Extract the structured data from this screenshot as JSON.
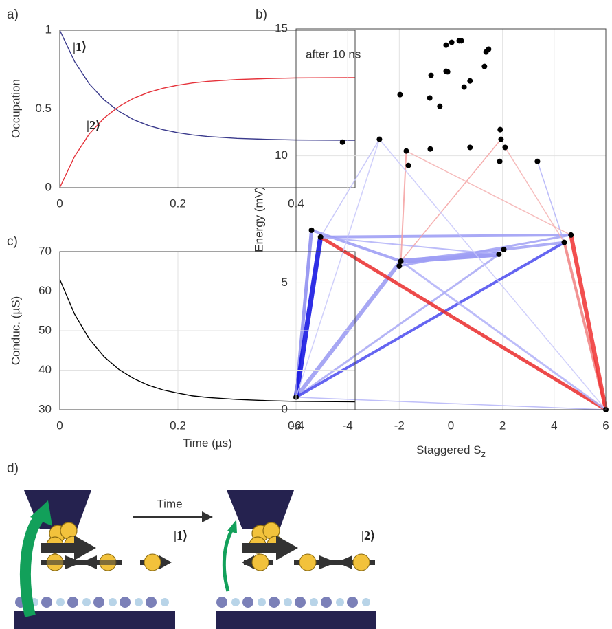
{
  "chart_data": [
    {
      "type": "line",
      "panel_label": "a)",
      "ylabel": "Occupation",
      "x": [
        0,
        0.025,
        0.05,
        0.075,
        0.1,
        0.125,
        0.15,
        0.175,
        0.2,
        0.225,
        0.25,
        0.3,
        0.35,
        0.4,
        0.5
      ],
      "series": [
        {
          "name": "|1⟩",
          "color": "#3a3a8c",
          "values": [
            1.0,
            0.802,
            0.659,
            0.558,
            0.485,
            0.432,
            0.395,
            0.368,
            0.349,
            0.335,
            0.325,
            0.313,
            0.307,
            0.303,
            0.301
          ]
        },
        {
          "name": "|2⟩",
          "color": "#e5323a",
          "values": [
            0.0,
            0.198,
            0.341,
            0.442,
            0.515,
            0.568,
            0.605,
            0.632,
            0.651,
            0.665,
            0.675,
            0.687,
            0.693,
            0.697,
            0.699
          ]
        }
      ],
      "xlim": [
        0,
        0.5
      ],
      "xticks": [
        0,
        0.2,
        0.4
      ],
      "ylim": [
        0,
        1
      ],
      "yticks": [
        0,
        0.5,
        1
      ],
      "grid": true
    },
    {
      "type": "scatter",
      "panel_label": "b)",
      "annotation": "after 10 ns",
      "xlabel": "Staggered S",
      "xlabel_sub": "z",
      "ylabel": "Energy (mV)",
      "color": "#000000",
      "x": [
        -6,
        6,
        -5.4,
        -5.05,
        -1.94,
        -2.0,
        1.86,
        2.05,
        4.39,
        4.65,
        -4.2,
        -2.77,
        -1.73,
        -1.65,
        -0.8,
        0.74,
        1.91,
        1.94,
        2.1,
        1.89,
        3.35,
        -1.97,
        -0.82,
        -0.43,
        -0.77,
        -0.19,
        -0.13,
        -0.19,
        0.03,
        0.32,
        0.4,
        0.51,
        0.74,
        1.3,
        1.36,
        1.46
      ],
      "y": [
        0.49,
        0,
        7.07,
        6.8,
        5.85,
        5.66,
        6.12,
        6.31,
        6.59,
        6.88,
        10.54,
        10.65,
        10.19,
        9.62,
        10.27,
        10.33,
        11.03,
        10.65,
        10.33,
        9.78,
        9.78,
        12.41,
        12.28,
        11.95,
        13.17,
        13.33,
        13.31,
        14.36,
        14.47,
        14.53,
        14.53,
        12.71,
        12.95,
        13.52,
        14.09,
        14.2
      ],
      "transitions": [
        {
          "x": [
            -6,
            6
          ],
          "y": [
            0.49,
            0
          ],
          "color": "#b4b4f8",
          "width": 1.5
        },
        {
          "x": [
            -6,
            1.86
          ],
          "y": [
            0.49,
            6.12
          ],
          "color": "#a8a8f5",
          "width": 3
        },
        {
          "x": [
            -6,
            -1.94
          ],
          "y": [
            0.49,
            5.85
          ],
          "color": "#9898f2",
          "width": 6
        },
        {
          "x": [
            -6,
            -5.4
          ],
          "y": [
            0.49,
            7.07
          ],
          "color": "#8a8af0",
          "width": 5
        },
        {
          "x": [
            -6,
            4.39
          ],
          "y": [
            0.49,
            6.59
          ],
          "color": "#4a4aee",
          "width": 4
        },
        {
          "x": [
            -6,
            -5.05
          ],
          "y": [
            0.49,
            6.8
          ],
          "color": "#0a0ae0",
          "width": 7
        },
        {
          "x": [
            -5.05,
            6
          ],
          "y": [
            6.8,
            0
          ],
          "color": "#ea2a2a",
          "width": 5
        },
        {
          "x": [
            4.39,
            6
          ],
          "y": [
            6.59,
            0
          ],
          "color": "#f08080",
          "width": 4
        },
        {
          "x": [
            4.65,
            6
          ],
          "y": [
            6.88,
            0
          ],
          "color": "#f03030",
          "width": 6
        },
        {
          "x": [
            -5.05,
            4.65
          ],
          "y": [
            6.8,
            6.88
          ],
          "color": "#9a9af5",
          "width": 4
        },
        {
          "x": [
            -1.94,
            1.86
          ],
          "y": [
            5.85,
            6.12
          ],
          "color": "#8c8cf2",
          "width": 7
        },
        {
          "x": [
            -1.94,
            4.39
          ],
          "y": [
            5.85,
            6.59
          ],
          "color": "#a0a0f5",
          "width": 4
        },
        {
          "x": [
            -5.4,
            -1.94
          ],
          "y": [
            7.07,
            5.85
          ],
          "color": "#9a9af5",
          "width": 4
        },
        {
          "x": [
            -1.94,
            6
          ],
          "y": [
            5.85,
            0
          ],
          "color": "#b0b0f8",
          "width": 3
        },
        {
          "x": [
            -5.05,
            1.86
          ],
          "y": [
            6.8,
            6.12
          ],
          "color": "#b0b0f8",
          "width": 2
        },
        {
          "x": [
            4.65,
            -2.0
          ],
          "y": [
            6.88,
            5.66
          ],
          "color": "#a0a0f5",
          "width": 3
        },
        {
          "x": [
            -1.94,
            -1.73
          ],
          "y": [
            5.85,
            10.19
          ],
          "color": "#f4a0a0",
          "width": 2
        },
        {
          "x": [
            -5.05,
            -2.77
          ],
          "y": [
            6.8,
            10.65
          ],
          "color": "#c0c0f8",
          "width": 1.5
        },
        {
          "x": [
            -1.94,
            1.94
          ],
          "y": [
            5.85,
            10.65
          ],
          "color": "#f4a0a0",
          "width": 1.5
        },
        {
          "x": [
            2.1,
            4.39
          ],
          "y": [
            10.33,
            6.59
          ],
          "color": "#f4b0b0",
          "width": 1.5
        },
        {
          "x": [
            -1.73,
            4.65
          ],
          "y": [
            10.19,
            6.88
          ],
          "color": "#f4b0b0",
          "width": 1.5
        },
        {
          "x": [
            3.35,
            4.39
          ],
          "y": [
            9.78,
            6.59
          ],
          "color": "#b0b0f8",
          "width": 1.5
        },
        {
          "x": [
            -2.77,
            6
          ],
          "y": [
            10.65,
            0
          ],
          "color": "#c8c8fa",
          "width": 1.5
        },
        {
          "x": [
            -6,
            -2.77
          ],
          "y": [
            0.49,
            10.65
          ],
          "color": "#c8c8fa",
          "width": 1.5
        }
      ],
      "xlim": [
        -6,
        6
      ],
      "xticks": [
        -6,
        -4,
        -2,
        0,
        2,
        4,
        6
      ],
      "ylim": [
        0,
        15
      ],
      "yticks": [
        0,
        5,
        10,
        15
      ],
      "grid": true
    },
    {
      "type": "line",
      "panel_label": "c)",
      "xlabel": "Time (µs)",
      "ylabel": "Conduc. (µS)",
      "color": "#000000",
      "x": [
        0,
        0.025,
        0.05,
        0.075,
        0.1,
        0.125,
        0.15,
        0.175,
        0.2,
        0.225,
        0.25,
        0.3,
        0.35,
        0.4,
        0.5
      ],
      "values": [
        63,
        54.2,
        47.9,
        43.4,
        40.2,
        37.9,
        36.2,
        35.0,
        34.2,
        33.5,
        33.1,
        32.6,
        32.3,
        32.1,
        32.0
      ],
      "xlim": [
        0,
        0.5
      ],
      "xticks": [
        0,
        0.2,
        0.4
      ],
      "ylim": [
        30,
        70
      ],
      "yticks": [
        30,
        40,
        50,
        60,
        70
      ],
      "grid": true
    }
  ],
  "diagram": {
    "panel_label": "d)",
    "time": "Time",
    "state_1": "|1⟩",
    "state_2": "|2⟩"
  }
}
